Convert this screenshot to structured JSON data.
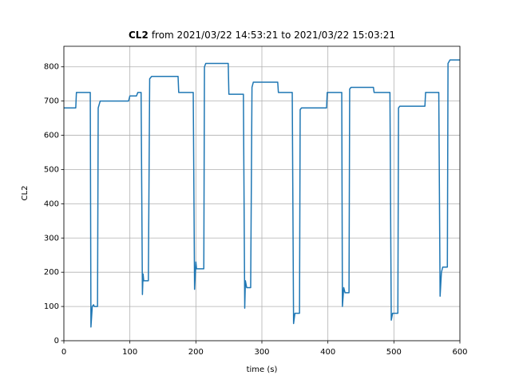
{
  "chart_data": {
    "type": "line",
    "title_bold": "CL2",
    "title": "from 2021/03/22 14:53:21 to 2021/03/22 15:03:21",
    "x_label": "time (s)",
    "y_label": "CL2",
    "x": [
      0,
      18,
      19,
      40,
      41,
      43,
      45,
      46,
      51,
      52,
      55,
      98,
      100,
      110,
      112,
      117,
      119,
      120,
      121,
      128,
      130,
      133,
      173,
      174,
      196,
      198,
      200,
      201,
      212,
      213,
      215,
      249,
      250,
      272,
      274,
      275,
      277,
      283,
      285,
      287,
      324,
      325,
      346,
      348,
      350,
      357,
      358,
      360,
      398,
      399,
      421,
      422,
      424,
      426,
      432,
      433,
      435,
      469,
      470,
      494,
      496,
      498,
      506,
      507,
      509,
      547,
      548,
      568,
      570,
      572,
      574,
      581,
      582,
      585,
      600
    ],
    "series": [
      {
        "color": "#1f77b4",
        "values": [
          680,
          680,
          725,
          725,
          40,
          100,
          105,
          100,
          100,
          680,
          700,
          700,
          715,
          715,
          725,
          725,
          135,
          195,
          175,
          175,
          765,
          772,
          772,
          725,
          725,
          150,
          230,
          210,
          210,
          800,
          810,
          810,
          720,
          720,
          95,
          175,
          155,
          155,
          740,
          755,
          755,
          725,
          725,
          50,
          80,
          80,
          675,
          680,
          680,
          725,
          725,
          100,
          155,
          140,
          140,
          735,
          740,
          740,
          725,
          725,
          60,
          80,
          80,
          680,
          685,
          685,
          725,
          725,
          130,
          200,
          215,
          215,
          810,
          820,
          820
        ]
      }
    ],
    "xlim": [
      0,
      600
    ],
    "ylim": [
      0,
      860
    ],
    "xticks": [
      0,
      100,
      200,
      300,
      400,
      500,
      600
    ],
    "yticks": [
      0,
      100,
      200,
      300,
      400,
      500,
      600,
      700,
      800
    ],
    "grid": true
  }
}
